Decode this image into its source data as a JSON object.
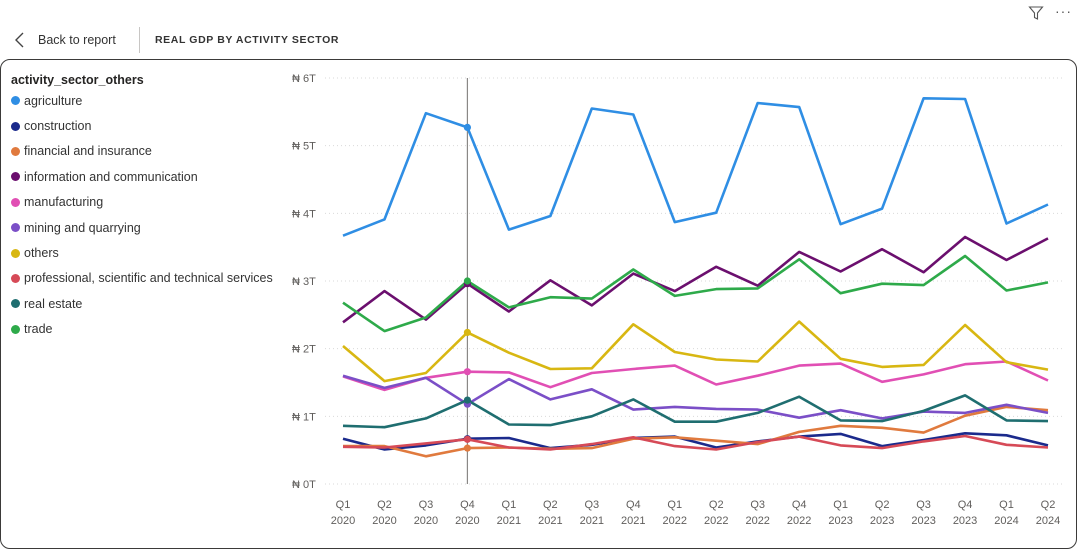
{
  "topbar": {
    "back_label": "Back to report",
    "title": "REAL GDP BY ACTIVITY SECTOR",
    "more_label": "···"
  },
  "icons": {
    "back": "chevron-left-icon",
    "filter": "filter-icon",
    "more": "more-options-icon"
  },
  "chart_data": {
    "type": "line",
    "title": "",
    "xlabel": "",
    "ylabel": "",
    "legend_title": "activity_sector_others",
    "legend_position": "left",
    "grid": true,
    "ylim": [
      0,
      6
    ],
    "yticks": [
      "₦ 0T",
      "₦ 1T",
      "₦ 2T",
      "₦ 3T",
      "₦ 4T",
      "₦ 5T",
      "₦ 6T"
    ],
    "categories": [
      {
        "q": "Q1",
        "y": "2020"
      },
      {
        "q": "Q2",
        "y": "2020"
      },
      {
        "q": "Q3",
        "y": "2020"
      },
      {
        "q": "Q4",
        "y": "2020"
      },
      {
        "q": "Q1",
        "y": "2021"
      },
      {
        "q": "Q2",
        "y": "2021"
      },
      {
        "q": "Q3",
        "y": "2021"
      },
      {
        "q": "Q4",
        "y": "2021"
      },
      {
        "q": "Q1",
        "y": "2022"
      },
      {
        "q": "Q2",
        "y": "2022"
      },
      {
        "q": "Q3",
        "y": "2022"
      },
      {
        "q": "Q4",
        "y": "2022"
      },
      {
        "q": "Q1",
        "y": "2023"
      },
      {
        "q": "Q2",
        "y": "2023"
      },
      {
        "q": "Q3",
        "y": "2023"
      },
      {
        "q": "Q4",
        "y": "2023"
      },
      {
        "q": "Q1",
        "y": "2024"
      },
      {
        "q": "Q2",
        "y": "2024"
      }
    ],
    "highlight_index": 3,
    "series": [
      {
        "name": "agriculture",
        "color": "#2f8ee4",
        "values": [
          3.67,
          3.91,
          5.48,
          5.27,
          3.76,
          3.96,
          5.55,
          5.46,
          3.87,
          4.01,
          5.63,
          5.57,
          3.84,
          4.07,
          5.7,
          5.69,
          3.85,
          4.13
        ]
      },
      {
        "name": "construction",
        "color": "#1b2a8c",
        "values": [
          0.67,
          0.51,
          0.57,
          0.67,
          0.68,
          0.53,
          0.58,
          0.68,
          0.7,
          0.54,
          0.63,
          0.7,
          0.74,
          0.56,
          0.65,
          0.75,
          0.72,
          0.57
        ]
      },
      {
        "name": "financial and insurance",
        "color": "#e07a3e",
        "values": [
          0.56,
          0.56,
          0.41,
          0.53,
          0.54,
          0.52,
          0.53,
          0.67,
          0.69,
          0.64,
          0.59,
          0.77,
          0.86,
          0.83,
          0.76,
          1.01,
          1.14,
          1.09
        ]
      },
      {
        "name": "information and communication",
        "color": "#6b0f6e",
        "values": [
          2.39,
          2.85,
          2.43,
          2.96,
          2.55,
          3.01,
          2.64,
          3.11,
          2.85,
          3.21,
          2.93,
          3.43,
          3.14,
          3.47,
          3.13,
          3.65,
          3.31,
          3.63
        ]
      },
      {
        "name": "manufacturing",
        "color": "#e14fb4",
        "values": [
          1.59,
          1.39,
          1.57,
          1.66,
          1.65,
          1.43,
          1.64,
          1.7,
          1.75,
          1.47,
          1.6,
          1.75,
          1.78,
          1.51,
          1.62,
          1.77,
          1.81,
          1.53
        ]
      },
      {
        "name": "mining and quarrying",
        "color": "#7b4fc7",
        "values": [
          1.6,
          1.42,
          1.57,
          1.18,
          1.55,
          1.25,
          1.4,
          1.1,
          1.14,
          1.11,
          1.1,
          0.98,
          1.09,
          0.97,
          1.07,
          1.05,
          1.17,
          1.05
        ]
      },
      {
        "name": "others",
        "color": "#d8b712",
        "values": [
          2.04,
          1.52,
          1.64,
          2.24,
          1.94,
          1.7,
          1.71,
          2.36,
          1.95,
          1.84,
          1.81,
          2.4,
          1.85,
          1.73,
          1.76,
          2.35,
          1.8,
          1.69
        ]
      },
      {
        "name": "professional, scientific and technical services",
        "color": "#d64a57",
        "values": [
          0.55,
          0.54,
          0.6,
          0.66,
          0.54,
          0.51,
          0.59,
          0.69,
          0.56,
          0.51,
          0.62,
          0.7,
          0.57,
          0.53,
          0.63,
          0.71,
          0.58,
          0.54
        ]
      },
      {
        "name": "real estate",
        "color": "#1f6e70",
        "values": [
          0.86,
          0.84,
          0.97,
          1.24,
          0.88,
          0.87,
          1.0,
          1.25,
          0.92,
          0.92,
          1.05,
          1.29,
          0.94,
          0.93,
          1.08,
          1.31,
          0.94,
          0.93
        ]
      },
      {
        "name": "trade",
        "color": "#2eaa4a",
        "values": [
          2.68,
          2.26,
          2.46,
          3.0,
          2.61,
          2.76,
          2.74,
          3.17,
          2.78,
          2.88,
          2.89,
          3.32,
          2.82,
          2.96,
          2.94,
          3.37,
          2.86,
          2.98
        ]
      }
    ]
  }
}
